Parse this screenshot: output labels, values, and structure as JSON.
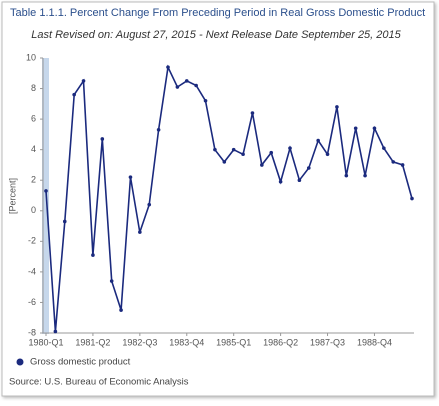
{
  "chart_data": {
    "type": "line",
    "title": "Table 1.1.1. Percent Change From Preceding Period in Real Gross Domestic Product",
    "subtitle": "Last Revised on: August 27, 2015 - Next Release Date September 25, 2015",
    "y_label": "[Percent]",
    "source": "Source: U.S. Bureau of Economic  Analysis",
    "categories": [
      "1980-Q1",
      null,
      null,
      null,
      null,
      "1981-Q2",
      null,
      null,
      null,
      null,
      "1982-Q3",
      null,
      null,
      null,
      null,
      "1983-Q4",
      null,
      null,
      null,
      null,
      "1985-Q1",
      null,
      null,
      null,
      null,
      "1986-Q2",
      null,
      null,
      null,
      null,
      "1987-Q3",
      null,
      null,
      null,
      null,
      "1988-Q4",
      null,
      null,
      null,
      null
    ],
    "series": [
      {
        "name": "Gross domestic product",
        "color": "#1b2a7e",
        "values": [
          1.3,
          -7.9,
          -0.7,
          7.6,
          8.5,
          -2.9,
          4.7,
          -4.6,
          -6.5,
          2.2,
          -1.4,
          0.4,
          5.3,
          9.4,
          8.1,
          8.5,
          8.2,
          7.2,
          4.0,
          3.2,
          4.0,
          3.7,
          6.4,
          3.0,
          3.8,
          1.9,
          4.1,
          2.0,
          2.8,
          4.6,
          3.7,
          6.8,
          2.3,
          5.4,
          2.3,
          5.4,
          4.1,
          3.2,
          3.0,
          0.8
        ]
      }
    ],
    "ylim": [
      -8,
      10
    ],
    "yticks": [
      -8,
      -6,
      -4,
      -2,
      0,
      2,
      4,
      6,
      8,
      10
    ],
    "grid": false
  }
}
